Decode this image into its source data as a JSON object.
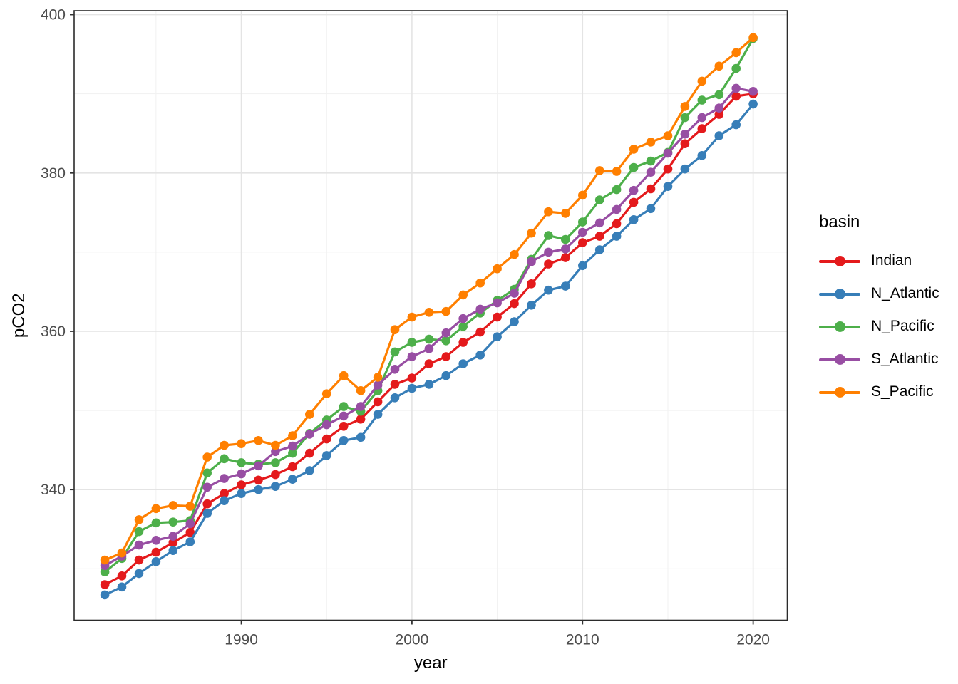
{
  "figure": {
    "kind": "ggplot-style line chart",
    "background": "#FFFFFF"
  },
  "legend": {
    "title": "basin"
  },
  "style": {
    "panel_border": "#2B2B2B",
    "grid_major": "#E4E4E4",
    "grid_minor": "#F1F1F1",
    "tick_mark_color": "#333333",
    "tick_label_color": "#4D4D4D",
    "axis_title_color": "#000000",
    "legend_text_color": "#000000",
    "background": "#FFFFFF"
  },
  "chart_data": {
    "type": "line",
    "title": "",
    "xlabel": "year",
    "ylabel": "pCO2",
    "grid": true,
    "legend_position": "right",
    "xlim": [
      1980.2,
      2022
    ],
    "ylim": [
      323.5,
      400.5
    ],
    "x_major_ticks": [
      1990,
      2000,
      2010,
      2020
    ],
    "x_minor_ticks": [
      1985,
      1995,
      2005,
      2015
    ],
    "y_major_ticks": [
      340,
      360,
      380,
      400
    ],
    "y_minor_ticks": [
      330,
      350,
      370,
      390
    ],
    "x": [
      1982,
      1983,
      1984,
      1985,
      1986,
      1987,
      1988,
      1989,
      1990,
      1991,
      1992,
      1993,
      1994,
      1995,
      1996,
      1997,
      1998,
      1999,
      2000,
      2001,
      2002,
      2003,
      2004,
      2005,
      2006,
      2007,
      2008,
      2009,
      2010,
      2011,
      2012,
      2013,
      2014,
      2015,
      2016,
      2017,
      2018,
      2019,
      2020
    ],
    "series": [
      {
        "name": "Indian",
        "color": "#E41A1C",
        "values": [
          328.0,
          329.1,
          331.1,
          332.1,
          333.3,
          334.6,
          338.2,
          339.5,
          340.6,
          341.2,
          341.9,
          342.9,
          344.6,
          346.4,
          348.0,
          348.9,
          351.1,
          353.3,
          354.1,
          355.9,
          356.8,
          358.6,
          359.9,
          361.8,
          363.5,
          366.0,
          368.5,
          369.3,
          371.2,
          372.0,
          373.6,
          376.3,
          378.0,
          380.5,
          383.7,
          385.6,
          387.4,
          389.7,
          390.0
        ]
      },
      {
        "name": "N_Atlantic",
        "color": "#377EB8",
        "values": [
          326.7,
          327.7,
          329.4,
          330.9,
          332.3,
          333.4,
          337.0,
          338.6,
          339.5,
          340.0,
          340.4,
          341.3,
          342.4,
          344.3,
          346.2,
          346.6,
          349.5,
          351.6,
          352.8,
          353.3,
          354.4,
          355.9,
          357.0,
          359.3,
          361.2,
          363.3,
          365.2,
          365.7,
          368.3,
          370.3,
          372.0,
          374.1,
          375.5,
          378.3,
          380.5,
          382.2,
          384.7,
          386.1,
          388.7
        ]
      },
      {
        "name": "N_Pacific",
        "color": "#4DAF4A",
        "values": [
          329.6,
          331.3,
          334.7,
          335.8,
          335.9,
          336.1,
          342.1,
          343.9,
          343.4,
          343.2,
          343.4,
          344.6,
          347.1,
          348.8,
          350.5,
          349.9,
          352.5,
          357.4,
          358.6,
          359.0,
          358.8,
          360.6,
          362.3,
          363.9,
          365.3,
          369.1,
          372.1,
          371.6,
          373.8,
          376.6,
          377.9,
          380.7,
          381.5,
          382.6,
          387.0,
          389.2,
          389.9,
          393.2,
          397.0
        ]
      },
      {
        "name": "S_Atlantic",
        "color": "#984EA3",
        "values": [
          330.4,
          331.6,
          333.0,
          333.6,
          334.1,
          335.7,
          340.3,
          341.4,
          342.0,
          343.0,
          344.8,
          345.5,
          347.0,
          348.2,
          349.3,
          350.5,
          353.2,
          355.2,
          356.8,
          357.8,
          359.8,
          361.6,
          362.8,
          363.6,
          364.8,
          368.8,
          370.0,
          370.4,
          372.5,
          373.7,
          375.4,
          377.8,
          380.1,
          382.5,
          384.9,
          387.0,
          388.2,
          390.7,
          390.3
        ]
      },
      {
        "name": "S_Pacific",
        "color": "#FF7F00",
        "values": [
          331.1,
          332.0,
          336.2,
          337.6,
          338.0,
          337.9,
          344.1,
          345.6,
          345.8,
          346.2,
          345.6,
          346.8,
          349.5,
          352.1,
          354.4,
          352.5,
          354.2,
          360.2,
          361.8,
          362.4,
          362.5,
          364.6,
          366.1,
          367.9,
          369.7,
          372.4,
          375.1,
          374.9,
          377.2,
          380.3,
          380.2,
          383.0,
          383.9,
          384.7,
          388.4,
          391.6,
          393.5,
          395.2,
          397.1
        ]
      }
    ]
  }
}
